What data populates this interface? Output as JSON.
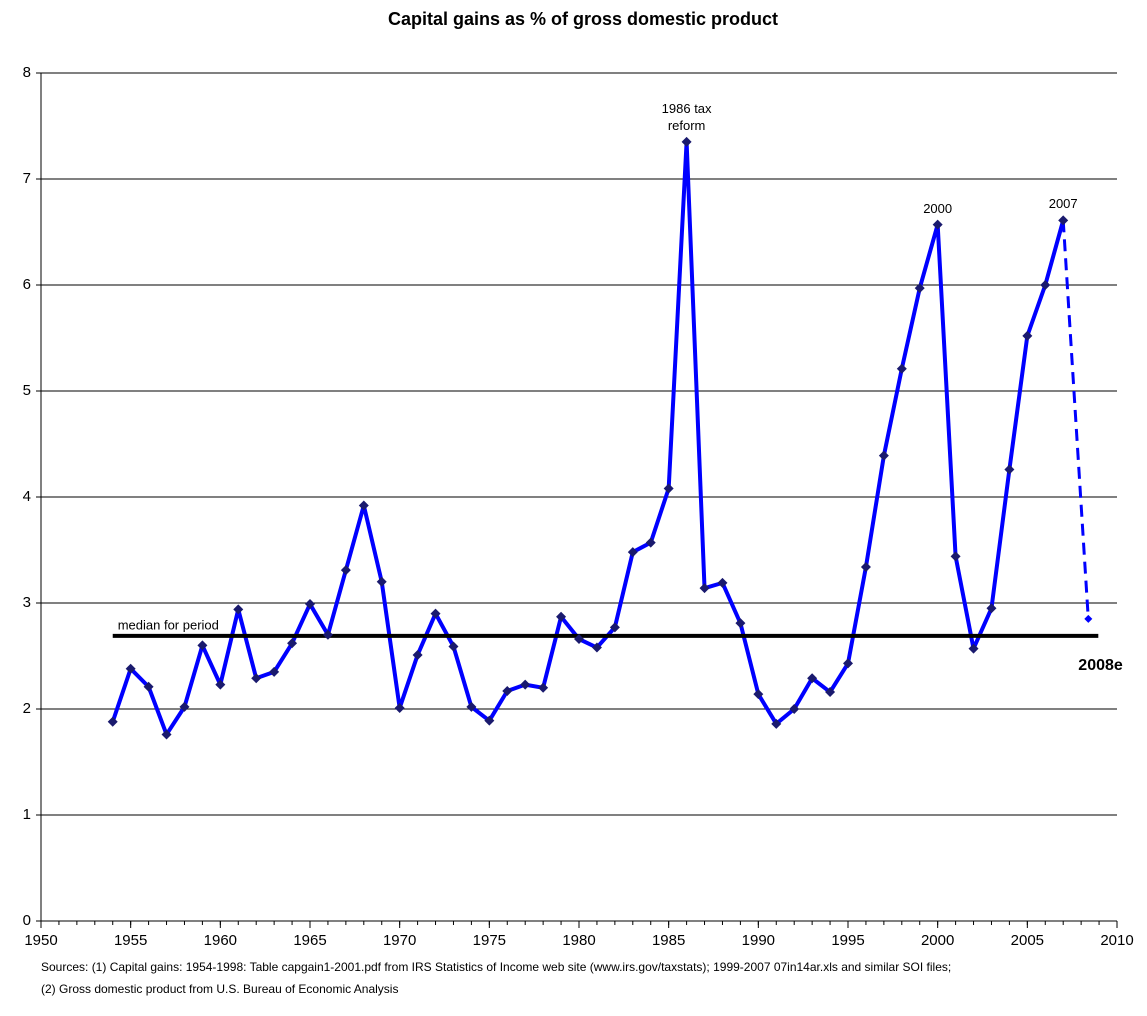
{
  "chart_data": {
    "type": "line",
    "title": "Capital gains as % of gross domestic product",
    "x": [
      1954,
      1955,
      1956,
      1957,
      1958,
      1959,
      1960,
      1961,
      1962,
      1963,
      1964,
      1965,
      1966,
      1967,
      1968,
      1969,
      1970,
      1971,
      1972,
      1973,
      1974,
      1975,
      1976,
      1977,
      1978,
      1979,
      1980,
      1981,
      1982,
      1983,
      1984,
      1985,
      1986,
      1987,
      1988,
      1989,
      1990,
      1991,
      1992,
      1993,
      1994,
      1995,
      1996,
      1997,
      1998,
      1999,
      2000,
      2001,
      2002,
      2003,
      2004,
      2005,
      2006,
      2007
    ],
    "values": [
      1.88,
      2.38,
      2.21,
      1.76,
      2.02,
      2.6,
      2.23,
      2.94,
      2.29,
      2.35,
      2.62,
      2.99,
      2.7,
      3.31,
      3.92,
      3.2,
      2.01,
      2.51,
      2.9,
      2.59,
      2.02,
      1.89,
      2.17,
      2.23,
      2.2,
      2.87,
      2.66,
      2.58,
      2.77,
      3.48,
      3.57,
      4.08,
      7.35,
      3.14,
      3.19,
      2.81,
      2.14,
      1.86,
      2.0,
      2.29,
      2.16,
      2.43,
      3.34,
      4.39,
      5.21,
      5.97,
      6.57,
      3.44,
      2.57,
      2.95,
      4.26,
      5.52,
      6.0,
      6.61
    ],
    "color": "#0000ff",
    "marker_color": "#1a1a6e",
    "estimate": {
      "x": 2008.4,
      "value": 2.85,
      "label": "2008e"
    },
    "median": {
      "value": 2.69,
      "label": "median for period"
    },
    "annotations": [
      {
        "text": "1986 tax reform",
        "index": 32
      },
      {
        "text": "2000",
        "index": 46
      },
      {
        "text": "2007",
        "index": 53
      }
    ],
    "xlim": [
      1950,
      2010
    ],
    "xticks": [
      1950,
      1955,
      1960,
      1965,
      1970,
      1975,
      1980,
      1985,
      1990,
      1995,
      2000,
      2005,
      2010
    ],
    "ylim": [
      0,
      8
    ],
    "yticks": [
      0,
      1,
      2,
      3,
      4,
      5,
      6,
      7,
      8
    ],
    "grid": true,
    "sources": [
      "Sources: (1) Capital gains: 1954-1998: Table capgain1-2001.pdf from IRS Statistics of Income web site (www.irs.gov/taxstats); 1999-2007 07in14ar.xls and similar SOI files;",
      "(2) Gross domestic product from U.S. Bureau of Economic Analysis"
    ]
  }
}
